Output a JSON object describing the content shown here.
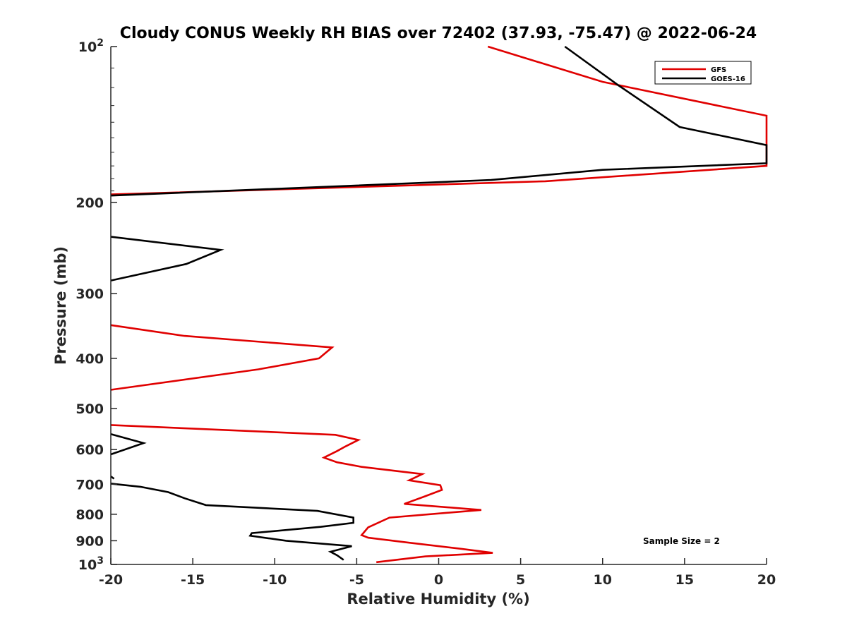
{
  "chart_data": {
    "type": "line",
    "title": "Cloudy CONUS Weekly RH BIAS over 72402 (37.93, -75.47) @ 2022-06-24",
    "xlabel": "Relative Humidity (%)",
    "ylabel": "Pressure (mb)",
    "xlim": [
      -20,
      20
    ],
    "ylim": [
      100,
      1000
    ],
    "yscale": "log",
    "yaxis_reversed": true,
    "x_ticks": [
      "-20",
      "-15",
      "-10",
      "-5",
      "0",
      "5",
      "10",
      "15",
      "20"
    ],
    "y_ticks": [
      {
        "label": "10",
        "sup": "2",
        "value": 100
      },
      {
        "label": "200",
        "value": 200
      },
      {
        "label": "300",
        "value": 300
      },
      {
        "label": "400",
        "value": 400
      },
      {
        "label": "500",
        "value": 500
      },
      {
        "label": "600",
        "value": 600
      },
      {
        "label": "700",
        "value": 700
      },
      {
        "label": "800",
        "value": 800
      },
      {
        "label": "900",
        "value": 900
      },
      {
        "label": "10",
        "sup": "3",
        "value": 1000
      }
    ],
    "grid": false,
    "legend_position": "top-right",
    "annotation": "Sample Size = 2",
    "series": [
      {
        "name": "GFS",
        "color": "#e00000",
        "points": [
          [
            3,
            100
          ],
          [
            10,
            117
          ],
          [
            20,
            136
          ],
          [
            20,
            170
          ],
          [
            6.5,
            182
          ],
          [
            -20,
            193
          ],
          null,
          [
            -20,
            345
          ],
          [
            -15.5,
            362
          ],
          [
            -6.5,
            381
          ],
          [
            -7.3,
            400
          ],
          [
            -11,
            420
          ],
          [
            -20,
            460
          ],
          null,
          [
            -20,
            538
          ],
          [
            -6.3,
            562
          ],
          [
            -4.9,
            575
          ],
          [
            -5.7,
            592
          ],
          [
            -6.2,
            604
          ],
          [
            -7,
            622
          ],
          [
            -6.2,
            635
          ],
          [
            -4.7,
            648
          ],
          [
            -1,
            669
          ],
          [
            -1.8,
            688
          ],
          [
            0.1,
            703
          ],
          [
            0.2,
            718
          ],
          [
            -0.9,
            740
          ],
          [
            -2.1,
            764
          ],
          [
            2.6,
            785
          ],
          [
            -3,
            812
          ],
          [
            -4.3,
            848
          ],
          [
            -4.7,
            878
          ],
          [
            -4.3,
            888
          ],
          [
            -1.8,
            908
          ],
          [
            1.4,
            933
          ],
          [
            3.3,
            950
          ],
          [
            -0.8,
            965
          ],
          [
            -3.8,
            990
          ]
        ]
      },
      {
        "name": "GOES-16",
        "color": "#000000",
        "points": [
          [
            7.7,
            100
          ],
          [
            11,
            119
          ],
          [
            14.7,
            143
          ],
          [
            20,
            155
          ],
          [
            20,
            168
          ],
          [
            10,
            173
          ],
          [
            3.2,
            181
          ],
          [
            -20,
            194
          ],
          null,
          [
            -20,
            233
          ],
          [
            -13.3,
            247
          ],
          [
            -15.4,
            263
          ],
          [
            -20,
            283
          ],
          null,
          [
            -20,
            560
          ],
          [
            -18,
            583
          ],
          [
            -20,
            613
          ],
          null,
          [
            -20,
            676
          ],
          [
            -19.8,
            683
          ],
          null,
          [
            -20,
            698
          ],
          [
            -18.2,
            708
          ],
          [
            -16.5,
            725
          ],
          [
            -15.5,
            745
          ],
          [
            -14.2,
            768
          ],
          [
            -7.4,
            788
          ],
          [
            -5.2,
            812
          ],
          [
            -5.2,
            831
          ],
          [
            -7.2,
            846
          ],
          [
            -11.4,
            870
          ],
          [
            -11.5,
            880
          ],
          [
            -9.3,
            900
          ],
          [
            -5.3,
            922
          ],
          [
            -6.6,
            945
          ],
          [
            -6.2,
            960
          ],
          [
            -5.8,
            980
          ]
        ]
      }
    ]
  }
}
